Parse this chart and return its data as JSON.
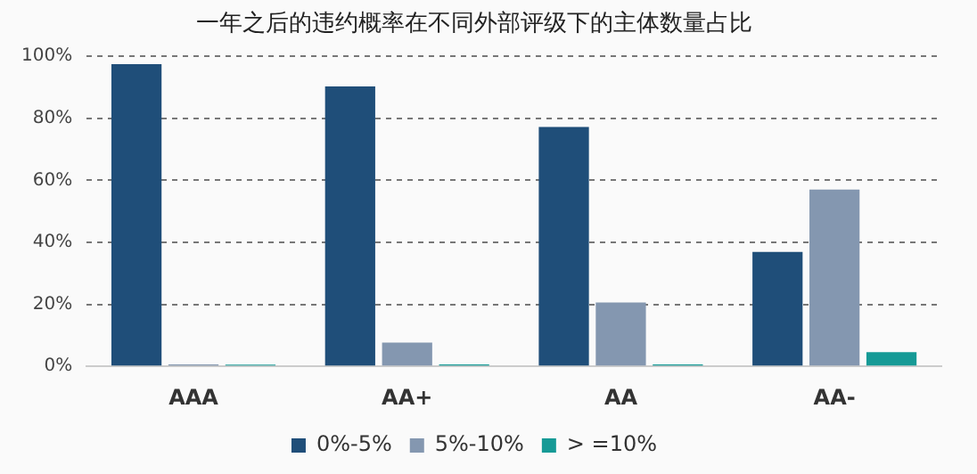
{
  "chart_data": {
    "type": "bar",
    "title": "一年之后的违约概率在不同外部评级下的主体数量占比",
    "categories": [
      "AAA",
      "AA+",
      "AA",
      "AA-"
    ],
    "series": [
      {
        "name": "0%-5%",
        "color": "#1f4e79",
        "values": [
          97.5,
          90.3,
          77.2,
          36.9
        ]
      },
      {
        "name": "5%-10%",
        "color": "#8497b0",
        "values": [
          0.6,
          7.7,
          20.6,
          57
        ]
      },
      {
        "name": "> =10%",
        "color": "#169a96",
        "values": [
          0.3,
          0.6,
          0.6,
          4.6
        ]
      }
    ],
    "ylim": [
      0,
      100
    ],
    "yticks": [
      {
        "value": 0,
        "label": "0%"
      },
      {
        "value": 20,
        "label": "20%"
      },
      {
        "value": 40,
        "label": "40%"
      },
      {
        "value": 60,
        "label": "60%"
      },
      {
        "value": 80,
        "label": "80%"
      },
      {
        "value": 100,
        "label": "100%"
      }
    ],
    "grid": "y",
    "legend": "bottom"
  }
}
